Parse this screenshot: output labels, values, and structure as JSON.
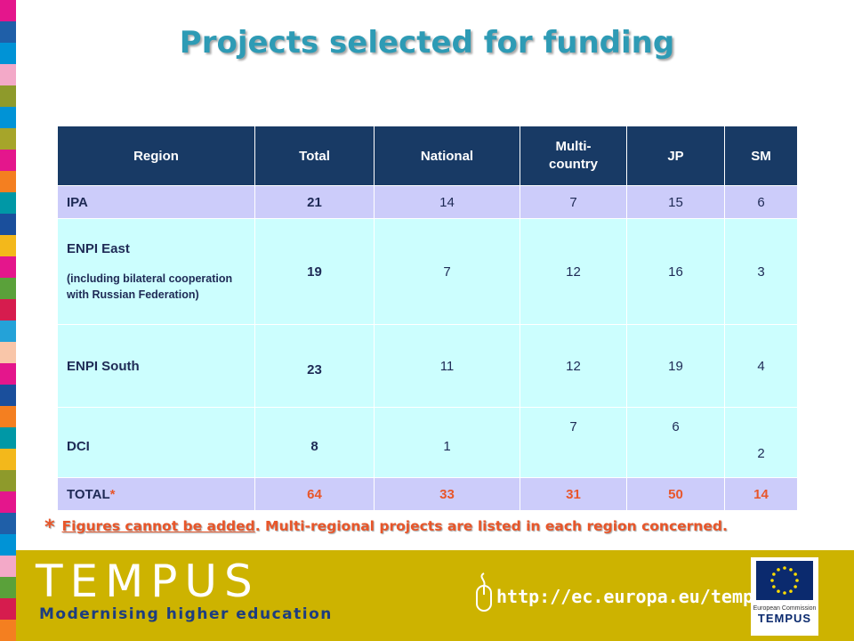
{
  "title": "Projects selected for funding",
  "strip_colors": [
    "#e4168c",
    "#1f5fa8",
    "#0093d6",
    "#f3a9c8",
    "#8e9a2b",
    "#0093d6",
    "#a6a52a",
    "#e4168c",
    "#f47f20",
    "#0098a6",
    "#1a4f9c",
    "#f3b81b",
    "#e4168c",
    "#5aa13a",
    "#d61c4e",
    "#24a2d8",
    "#f9c6a9",
    "#e4168c",
    "#1a4f9c",
    "#f47f20",
    "#0098a6",
    "#f3b81b",
    "#8e9a2b",
    "#e4168c",
    "#1f5fa8",
    "#0093d6",
    "#f3a9c8",
    "#5aa13a",
    "#d61c4e",
    "#f47f20"
  ],
  "table": {
    "headers": [
      "Region",
      "Total",
      "National",
      "Multi-\ncountry",
      "JP",
      "SM"
    ],
    "rows": [
      {
        "region": "IPA",
        "total": "21",
        "national": "14",
        "multi": "7",
        "jp": "15",
        "sm": "6"
      },
      {
        "region": "ENPI East",
        "region_note": "(including bilateral cooperation with Russian Federation)",
        "total": "19",
        "national": "7",
        "multi": "12",
        "jp": "16",
        "sm": "3"
      },
      {
        "region": "ENPI South",
        "total": "23",
        "national": "11",
        "multi": "12",
        "jp": "19",
        "sm": "4"
      },
      {
        "region": "DCI",
        "total": "8",
        "national": "1",
        "multi": "7",
        "jp": "6",
        "sm": "2"
      }
    ],
    "total_row": {
      "label": "TOTAL",
      "star": "*",
      "total": "64",
      "national": "33",
      "multi": "31",
      "jp": "50",
      "sm": "14"
    }
  },
  "footnote": {
    "star": "*",
    "underlined": "Figures cannot be added",
    "rest": ". Multi-regional projects are listed in each region concerned."
  },
  "banner": {
    "logo_text": "TEMPUS",
    "tagline": "Modernising higher education",
    "url": "http://ec.europa.eu/tempus",
    "eu_caption": "European Commission",
    "eu_name": "TEMPUS",
    "colors": {
      "background": "#cdb300",
      "eu_blue": "#0b2a6e"
    }
  }
}
